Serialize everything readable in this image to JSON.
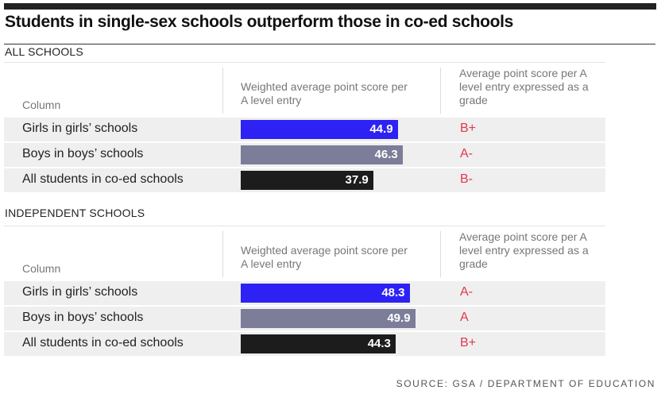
{
  "title": "Students in single-sex schools outperform those in co-ed schools",
  "source": "SOURCE: GSA / DEPARTMENT OF EDUCATION",
  "colors": {
    "girls": "#2d22f3",
    "boys": "#7b7d99",
    "coed": "#1c1c1c",
    "grade": "#e5354f"
  },
  "chart_data": [
    {
      "type": "bar",
      "section": "ALL SCHOOLS",
      "column_header": "Column",
      "value_header": "Weighted average point score per A level entry",
      "grade_header": "Average point score per A level entry expressed as a grade",
      "categories": [
        "Girls in girls’ schools",
        "Boys in boys’ schools",
        "All students in co-ed schools"
      ],
      "values": [
        44.9,
        46.3,
        37.9
      ],
      "grades": [
        "B+",
        "A-",
        "B-"
      ]
    },
    {
      "type": "bar",
      "section": "INDEPENDENT SCHOOLS",
      "column_header": "Column",
      "value_header": "Weighted average point score per A level entry",
      "grade_header": "Average point score per A level entry expressed as a grade",
      "categories": [
        "Girls in girls’ schools",
        "Boys in boys’ schools",
        "All students in co-ed schools"
      ],
      "values": [
        48.3,
        49.9,
        44.3
      ],
      "grades": [
        "A-",
        "A",
        "B+"
      ]
    }
  ]
}
